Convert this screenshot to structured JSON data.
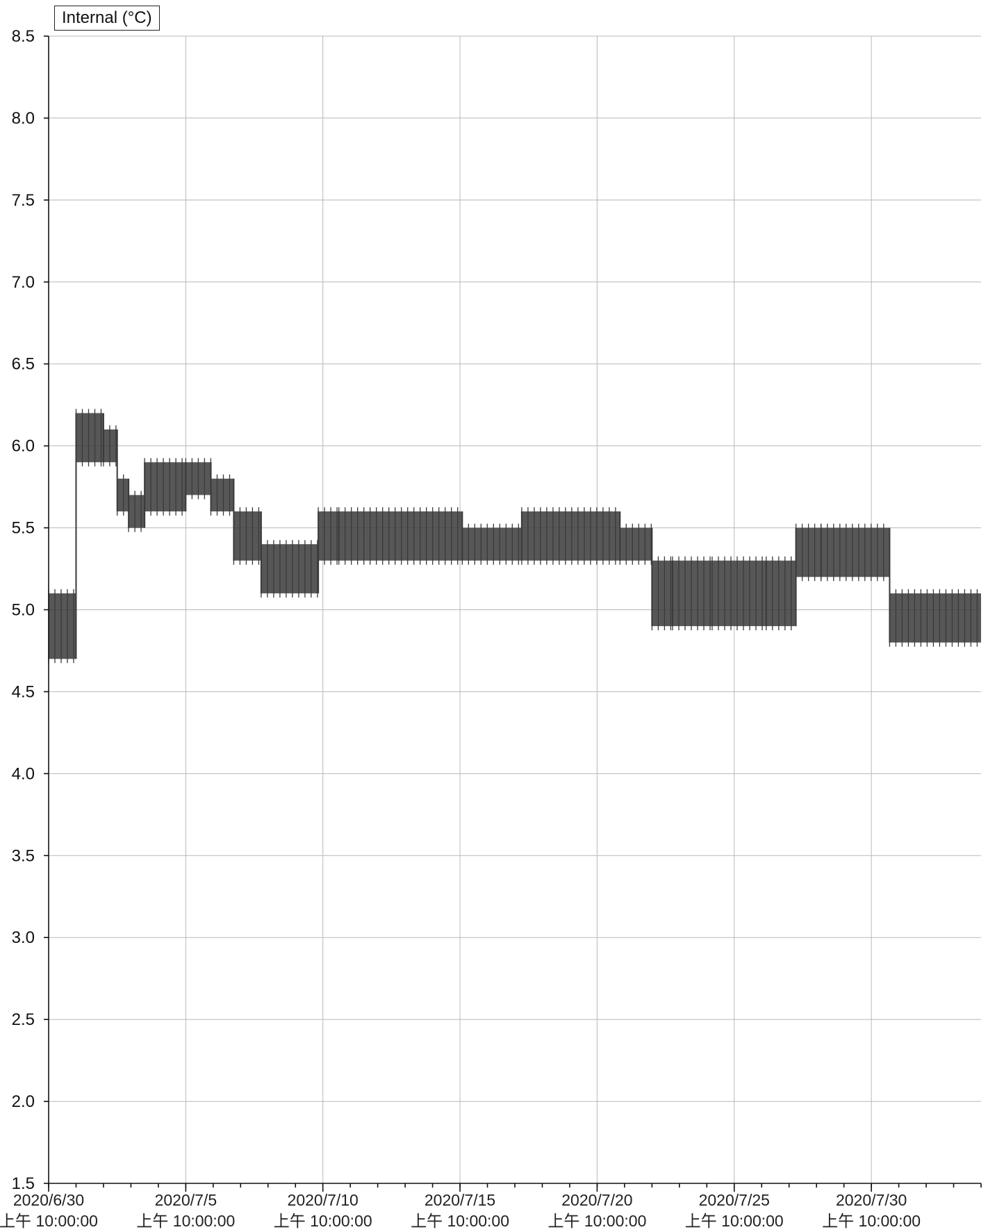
{
  "chart_data": {
    "type": "line",
    "title": "",
    "legend": {
      "label": "Internal (°C)",
      "placement": "top-left"
    },
    "ylabel": "",
    "xlabel": "",
    "ylim": [
      1.5,
      8.5
    ],
    "y_ticks": [
      "8.5",
      "8.0",
      "7.5",
      "7.0",
      "6.5",
      "6.0",
      "5.5",
      "5.0",
      "4.5",
      "4.0",
      "3.5",
      "3.0",
      "2.5",
      "2.0",
      "1.5"
    ],
    "xlim": [
      "2020-06-30 10:00",
      "2020-08-03 10:00"
    ],
    "x_ticks": [
      {
        "date": "2020/6/30",
        "time": "上午 10:00:00"
      },
      {
        "date": "2020/7/5",
        "time": "上午 10:00:00"
      },
      {
        "date": "2020/7/10",
        "time": "上午 10:00:00"
      },
      {
        "date": "2020/7/15",
        "time": "上午 10:00:00"
      },
      {
        "date": "2020/7/20",
        "time": "上午 10:00:00"
      },
      {
        "date": "2020/7/25",
        "time": "上午 10:00:00"
      },
      {
        "date": "2020/7/30",
        "time": "上午 10:00:00"
      }
    ],
    "grid": true,
    "series": [
      {
        "name": "Internal (°C)",
        "color": "#3a3a3a",
        "segments": [
          {
            "start": "2020-06-30 10:00",
            "end": "2020-07-01 10:00",
            "low": 4.7,
            "high": 5.1
          },
          {
            "start": "2020-07-01 10:00",
            "end": "2020-07-02 10:00",
            "low": 5.9,
            "high": 6.2
          },
          {
            "start": "2020-07-02 10:00",
            "end": "2020-07-02 22:00",
            "low": 5.9,
            "high": 6.1
          },
          {
            "start": "2020-07-02 22:00",
            "end": "2020-07-03 08:00",
            "low": 5.6,
            "high": 5.8
          },
          {
            "start": "2020-07-03 08:00",
            "end": "2020-07-03 22:00",
            "low": 5.5,
            "high": 5.7
          },
          {
            "start": "2020-07-03 22:00",
            "end": "2020-07-05 10:00",
            "low": 5.6,
            "high": 5.9
          },
          {
            "start": "2020-07-05 10:00",
            "end": "2020-07-06 08:00",
            "low": 5.7,
            "high": 5.9
          },
          {
            "start": "2020-07-06 08:00",
            "end": "2020-07-07 04:00",
            "low": 5.6,
            "high": 5.8
          },
          {
            "start": "2020-07-07 04:00",
            "end": "2020-07-08 04:00",
            "low": 5.3,
            "high": 5.6
          },
          {
            "start": "2020-07-08 04:00",
            "end": "2020-07-10 06:00",
            "low": 5.1,
            "high": 5.4
          },
          {
            "start": "2020-07-10 06:00",
            "end": "2020-07-11 00:00",
            "low": 5.3,
            "high": 5.6
          },
          {
            "start": "2020-07-11 00:00",
            "end": "2020-07-15 12:00",
            "low": 5.3,
            "high": 5.6
          },
          {
            "start": "2020-07-15 12:00",
            "end": "2020-07-17 16:00",
            "low": 5.3,
            "high": 5.5
          },
          {
            "start": "2020-07-17 16:00",
            "end": "2020-07-21 06:00",
            "low": 5.3,
            "high": 5.6
          },
          {
            "start": "2020-07-21 06:00",
            "end": "2020-07-22 10:00",
            "low": 5.3,
            "high": 5.5
          },
          {
            "start": "2020-07-22 10:00",
            "end": "2020-07-23 04:00",
            "low": 4.9,
            "high": 5.3
          },
          {
            "start": "2020-07-23 04:00",
            "end": "2020-07-26 14:00",
            "low": 4.9,
            "high": 5.3
          },
          {
            "start": "2020-07-26 14:00",
            "end": "2020-07-27 16:00",
            "low": 4.9,
            "high": 5.3
          },
          {
            "start": "2020-07-27 16:00",
            "end": "2020-07-28 14:00",
            "low": 5.2,
            "high": 5.5
          },
          {
            "start": "2020-07-28 14:00",
            "end": "2020-07-31 02:00",
            "low": 5.2,
            "high": 5.5
          },
          {
            "start": "2020-07-31 02:00",
            "end": "2020-08-03 10:00",
            "low": 4.8,
            "high": 5.1
          }
        ]
      }
    ]
  }
}
